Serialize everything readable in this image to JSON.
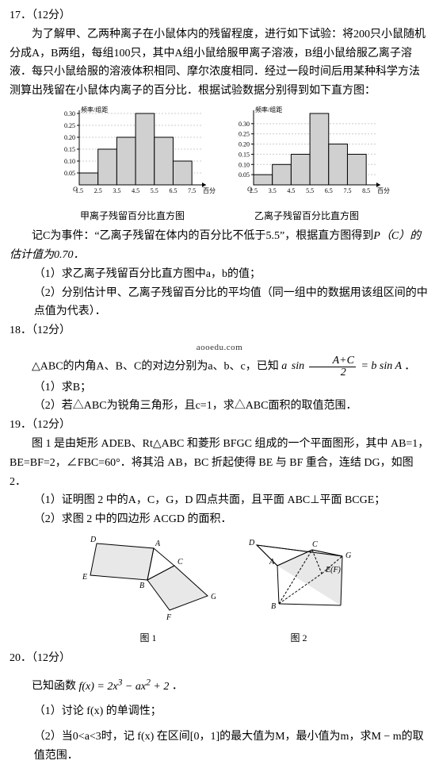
{
  "q17": {
    "num": "17．（12分）",
    "p1": "为了解甲、乙两种离子在小鼠体内的残留程度，进行如下试验：将200只小鼠随机分成A，B两组，每组100只，其中A组小鼠给服甲离子溶液，B组小鼠给服乙离子溶液．每只小鼠给服的溶液体积相同、摩尔浓度相同．经过一段时间后用某种科学方法测算出残留在小鼠体内离子的百分比．根据试验数据分别得到如下直方图：",
    "chart1": {
      "ylabel": "频率/组距",
      "xlabel": "百分比",
      "caption": "甲离子残留百分比直方图",
      "xticks": [
        "1.5",
        "2.5",
        "3.5",
        "4.5",
        "5.5",
        "6.5",
        "7.5"
      ],
      "yticks": [
        "0.05",
        "0.10",
        "0.15",
        "0.20",
        "0.25",
        "0.30"
      ],
      "bars": [
        0.05,
        0.15,
        0.2,
        0.3,
        0.2,
        0.1
      ],
      "ymax": 0.3,
      "bar_fill": "#d0d0d0",
      "bar_stroke": "#000000",
      "axis_color": "#000000",
      "bg": "#ffffff",
      "fontsize": 8
    },
    "chart2": {
      "ylabel": "频率/组距",
      "xlabel": "百分比",
      "caption": "乙离子残留百分比直方图",
      "xticks": [
        "2.5",
        "3.5",
        "4.5",
        "5.5",
        "6.5",
        "7.5",
        "8.5"
      ],
      "yticks": [
        "0.05",
        "0.10",
        "0.15",
        "0.20",
        "0.25",
        "0.30"
      ],
      "bars": [
        0.05,
        0.1,
        0.15,
        0.35,
        0.2,
        0.15
      ],
      "ymax": 0.35,
      "bar_fill": "#d0d0d0",
      "bar_stroke": "#000000",
      "axis_color": "#000000",
      "bg": "#ffffff",
      "fontsize": 8
    },
    "p2_a": "记C为事件：“乙离子残留在体内的百分比不低于5.5”，根据直方图得到",
    "p2_b": "P（C）的估计值为0.70．",
    "s1": "（1）求乙离子残留百分比直方图中a，b的值；",
    "s2": "（2）分别估计甲、乙离子残留百分比的平均值（同一组中的数据用该组区间的中点值为代表）．"
  },
  "q18": {
    "num": "18．（12分）",
    "p1_a": "△ABC的内角A、B、C的对边分别为a、b、c，已知",
    "p1_b": "．",
    "eq": {
      "lhs_a": "a",
      "lhs_sin": "sin",
      "frac_n": "A+C",
      "frac_d": "2",
      "eq": "= b sin A"
    },
    "s1": "（1）求B；",
    "s2": "（2）若△ABC为锐角三角形，且c=1，求△ABC面积的取值范围．",
    "watermark": "aooedu.com"
  },
  "q19": {
    "num": "19．（12分）",
    "p1": "图 1 是由矩形 ADEB、Rt△ABC 和菱形 BFGC 组成的一个平面图形，其中 AB=1，BE=BF=2，∠FBC=60°．将其沿 AB，BC 折起使得 BE 与 BF 重合，连结 DG，如图 2．",
    "s1": "（1）证明图 2 中的A，C，G，D 四点共面，且平面 ABC⊥平面 BCGE；",
    "s2": "（2）求图 2 中的四边形 ACGD 的面积．",
    "fig1": {
      "caption": "图 1",
      "labels": {
        "D": "D",
        "A": "A",
        "E": "E",
        "B": "B",
        "C": "C",
        "F": "F",
        "G": "G"
      },
      "stroke": "#000000",
      "fill": "#e8e8e8"
    },
    "fig2": {
      "caption": "图 2",
      "labels": {
        "D": "D",
        "A": "A",
        "C": "C",
        "G": "G",
        "B": "B",
        "EF": "E(F)"
      },
      "stroke": "#000000",
      "fill": "#e8e8e8",
      "dash": "3,2"
    }
  },
  "q20": {
    "num": "20．（12分）",
    "p1_a": "已知函数 ",
    "p1_b": "．",
    "fn": {
      "f": "f(x) = 2x",
      "sup": "3",
      "mid": " − ax",
      "sup2": "2",
      "tail": " + 2"
    },
    "s1": "（1）讨论 f(x) 的单调性；",
    "s2": "（2）当0<a<3时，记 f(x) 在区间[0，1]的最大值为M，最小值为m，求M − m的取值范围．"
  }
}
